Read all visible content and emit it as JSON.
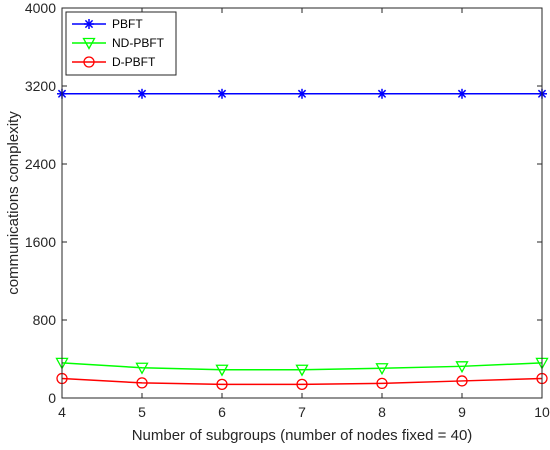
{
  "chart_data": {
    "type": "line",
    "title": "",
    "xlabel": "Number of subgroups (number of nodes fixed = 40)",
    "ylabel": "communications complexity",
    "x": [
      4,
      5,
      6,
      7,
      8,
      9,
      10
    ],
    "xlim": [
      4,
      10
    ],
    "ylim": [
      0,
      4000
    ],
    "x_ticks": [
      "4",
      "5",
      "6",
      "7",
      "8",
      "9",
      "10"
    ],
    "y_ticks": [
      "0",
      "800",
      "1600",
      "2400",
      "3200",
      "4000"
    ],
    "grid": false,
    "legend_position": "top-left",
    "series": [
      {
        "name": "PBFT",
        "color": "#0000ff",
        "marker": "asterisk",
        "values": [
          3120,
          3120,
          3120,
          3120,
          3120,
          3120,
          3120
        ]
      },
      {
        "name": "ND-PBFT",
        "color": "#00ff00",
        "marker": "triangle-down",
        "values": [
          360,
          310,
          290,
          290,
          305,
          325,
          360
        ]
      },
      {
        "name": "D-PBFT",
        "color": "#ff0000",
        "marker": "circle",
        "values": [
          200,
          155,
          140,
          140,
          150,
          175,
          200
        ]
      }
    ]
  }
}
